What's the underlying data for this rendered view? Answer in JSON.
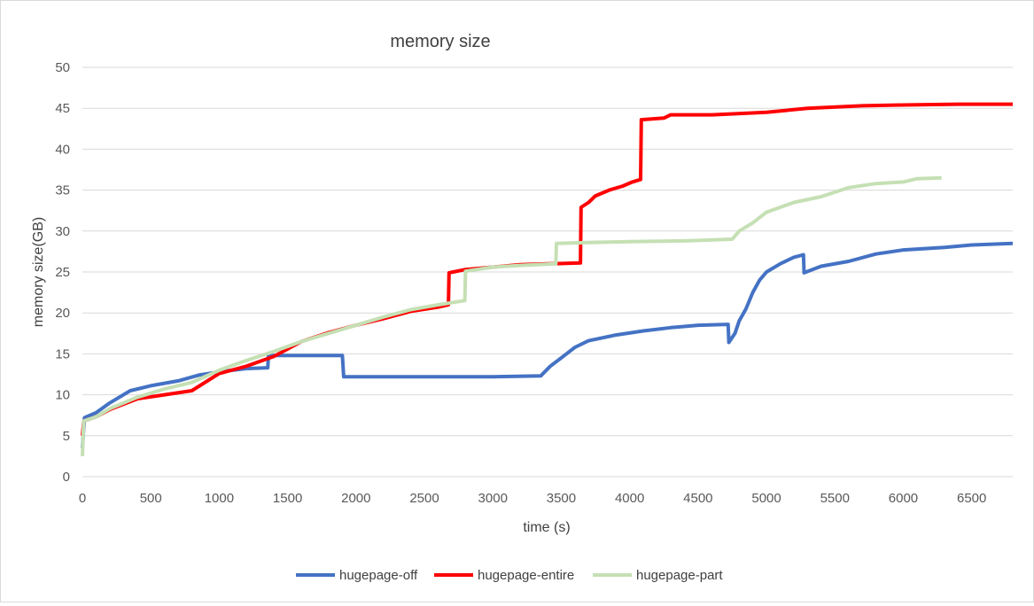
{
  "colors": {
    "hugepage_off": "#4472C4",
    "hugepage_entire": "#FF0000",
    "hugepage_part": "#C5E0B4",
    "grid": "#D9D9D9",
    "text": "#595959"
  },
  "chart_data": {
    "type": "line",
    "title": "memory size",
    "xlabel": "time (s)",
    "ylabel": "memory size(GB)",
    "xlim": [
      0,
      6800
    ],
    "ylim": [
      0,
      50
    ],
    "xticks": [
      0,
      500,
      1000,
      1500,
      2000,
      2500,
      3000,
      3500,
      4000,
      4500,
      5000,
      5500,
      6000,
      6500
    ],
    "yticks": [
      0,
      5,
      10,
      15,
      20,
      25,
      30,
      35,
      40,
      45,
      50
    ],
    "grid": "horizontal",
    "legend_position": "bottom",
    "series": [
      {
        "name": "hugepage-off",
        "color": "#4472C4",
        "points": [
          [
            0,
            3.5
          ],
          [
            15,
            7.2
          ],
          [
            100,
            7.8
          ],
          [
            200,
            9.0
          ],
          [
            350,
            10.5
          ],
          [
            500,
            11.1
          ],
          [
            700,
            11.7
          ],
          [
            850,
            12.4
          ],
          [
            1000,
            12.8
          ],
          [
            1200,
            13.2
          ],
          [
            1355,
            13.3
          ],
          [
            1360,
            14.8
          ],
          [
            1900,
            14.8
          ],
          [
            1910,
            12.2
          ],
          [
            2500,
            12.2
          ],
          [
            3000,
            12.2
          ],
          [
            3350,
            12.3
          ],
          [
            3420,
            13.5
          ],
          [
            3500,
            14.5
          ],
          [
            3600,
            15.8
          ],
          [
            3700,
            16.6
          ],
          [
            3900,
            17.3
          ],
          [
            4100,
            17.8
          ],
          [
            4300,
            18.2
          ],
          [
            4500,
            18.5
          ],
          [
            4720,
            18.6
          ],
          [
            4725,
            16.4
          ],
          [
            4770,
            17.5
          ],
          [
            4800,
            19.0
          ],
          [
            4850,
            20.5
          ],
          [
            4900,
            22.5
          ],
          [
            4950,
            24.0
          ],
          [
            5000,
            25.0
          ],
          [
            5100,
            26.0
          ],
          [
            5200,
            26.8
          ],
          [
            5270,
            27.1
          ],
          [
            5275,
            24.9
          ],
          [
            5400,
            25.7
          ],
          [
            5600,
            26.3
          ],
          [
            5800,
            27.2
          ],
          [
            6000,
            27.7
          ],
          [
            6300,
            28.0
          ],
          [
            6500,
            28.3
          ],
          [
            6800,
            28.5
          ]
        ]
      },
      {
        "name": "hugepage-entire",
        "color": "#FF0000",
        "points": [
          [
            0,
            5.0
          ],
          [
            10,
            6.8
          ],
          [
            100,
            7.3
          ],
          [
            200,
            8.2
          ],
          [
            400,
            9.5
          ],
          [
            600,
            10.0
          ],
          [
            800,
            10.5
          ],
          [
            1000,
            12.6
          ],
          [
            1200,
            13.5
          ],
          [
            1400,
            14.7
          ],
          [
            1600,
            16.5
          ],
          [
            1800,
            17.6
          ],
          [
            2000,
            18.5
          ],
          [
            2200,
            19.3
          ],
          [
            2400,
            20.2
          ],
          [
            2600,
            20.7
          ],
          [
            2675,
            21.0
          ],
          [
            2680,
            24.9
          ],
          [
            2800,
            25.3
          ],
          [
            3000,
            25.6
          ],
          [
            3200,
            25.9
          ],
          [
            3400,
            26.0
          ],
          [
            3640,
            26.1
          ],
          [
            3645,
            32.9
          ],
          [
            3700,
            33.5
          ],
          [
            3750,
            34.3
          ],
          [
            3850,
            35.0
          ],
          [
            3950,
            35.5
          ],
          [
            4020,
            36.0
          ],
          [
            4080,
            36.3
          ],
          [
            4085,
            43.6
          ],
          [
            4250,
            43.8
          ],
          [
            4300,
            44.2
          ],
          [
            4600,
            44.2
          ],
          [
            5000,
            44.5
          ],
          [
            5300,
            45.0
          ],
          [
            5700,
            45.3
          ],
          [
            6000,
            45.4
          ],
          [
            6400,
            45.5
          ],
          [
            6800,
            45.5
          ]
        ]
      },
      {
        "name": "hugepage-part",
        "color": "#C5E0B4",
        "points": [
          [
            0,
            2.5
          ],
          [
            10,
            6.8
          ],
          [
            100,
            7.3
          ],
          [
            200,
            8.3
          ],
          [
            400,
            9.7
          ],
          [
            600,
            10.7
          ],
          [
            800,
            11.5
          ],
          [
            1000,
            13.0
          ],
          [
            1200,
            14.2
          ],
          [
            1400,
            15.3
          ],
          [
            1600,
            16.5
          ],
          [
            1800,
            17.5
          ],
          [
            2000,
            18.5
          ],
          [
            2200,
            19.5
          ],
          [
            2400,
            20.4
          ],
          [
            2600,
            21.0
          ],
          [
            2795,
            21.5
          ],
          [
            2800,
            25.1
          ],
          [
            3000,
            25.6
          ],
          [
            3200,
            25.8
          ],
          [
            3460,
            26.0
          ],
          [
            3465,
            28.5
          ],
          [
            3700,
            28.6
          ],
          [
            4000,
            28.7
          ],
          [
            4400,
            28.8
          ],
          [
            4750,
            29.0
          ],
          [
            4800,
            30.0
          ],
          [
            4900,
            31.0
          ],
          [
            5000,
            32.3
          ],
          [
            5200,
            33.5
          ],
          [
            5400,
            34.2
          ],
          [
            5600,
            35.3
          ],
          [
            5800,
            35.8
          ],
          [
            6000,
            36.0
          ],
          [
            6100,
            36.4
          ],
          [
            6280,
            36.5
          ]
        ]
      }
    ]
  }
}
